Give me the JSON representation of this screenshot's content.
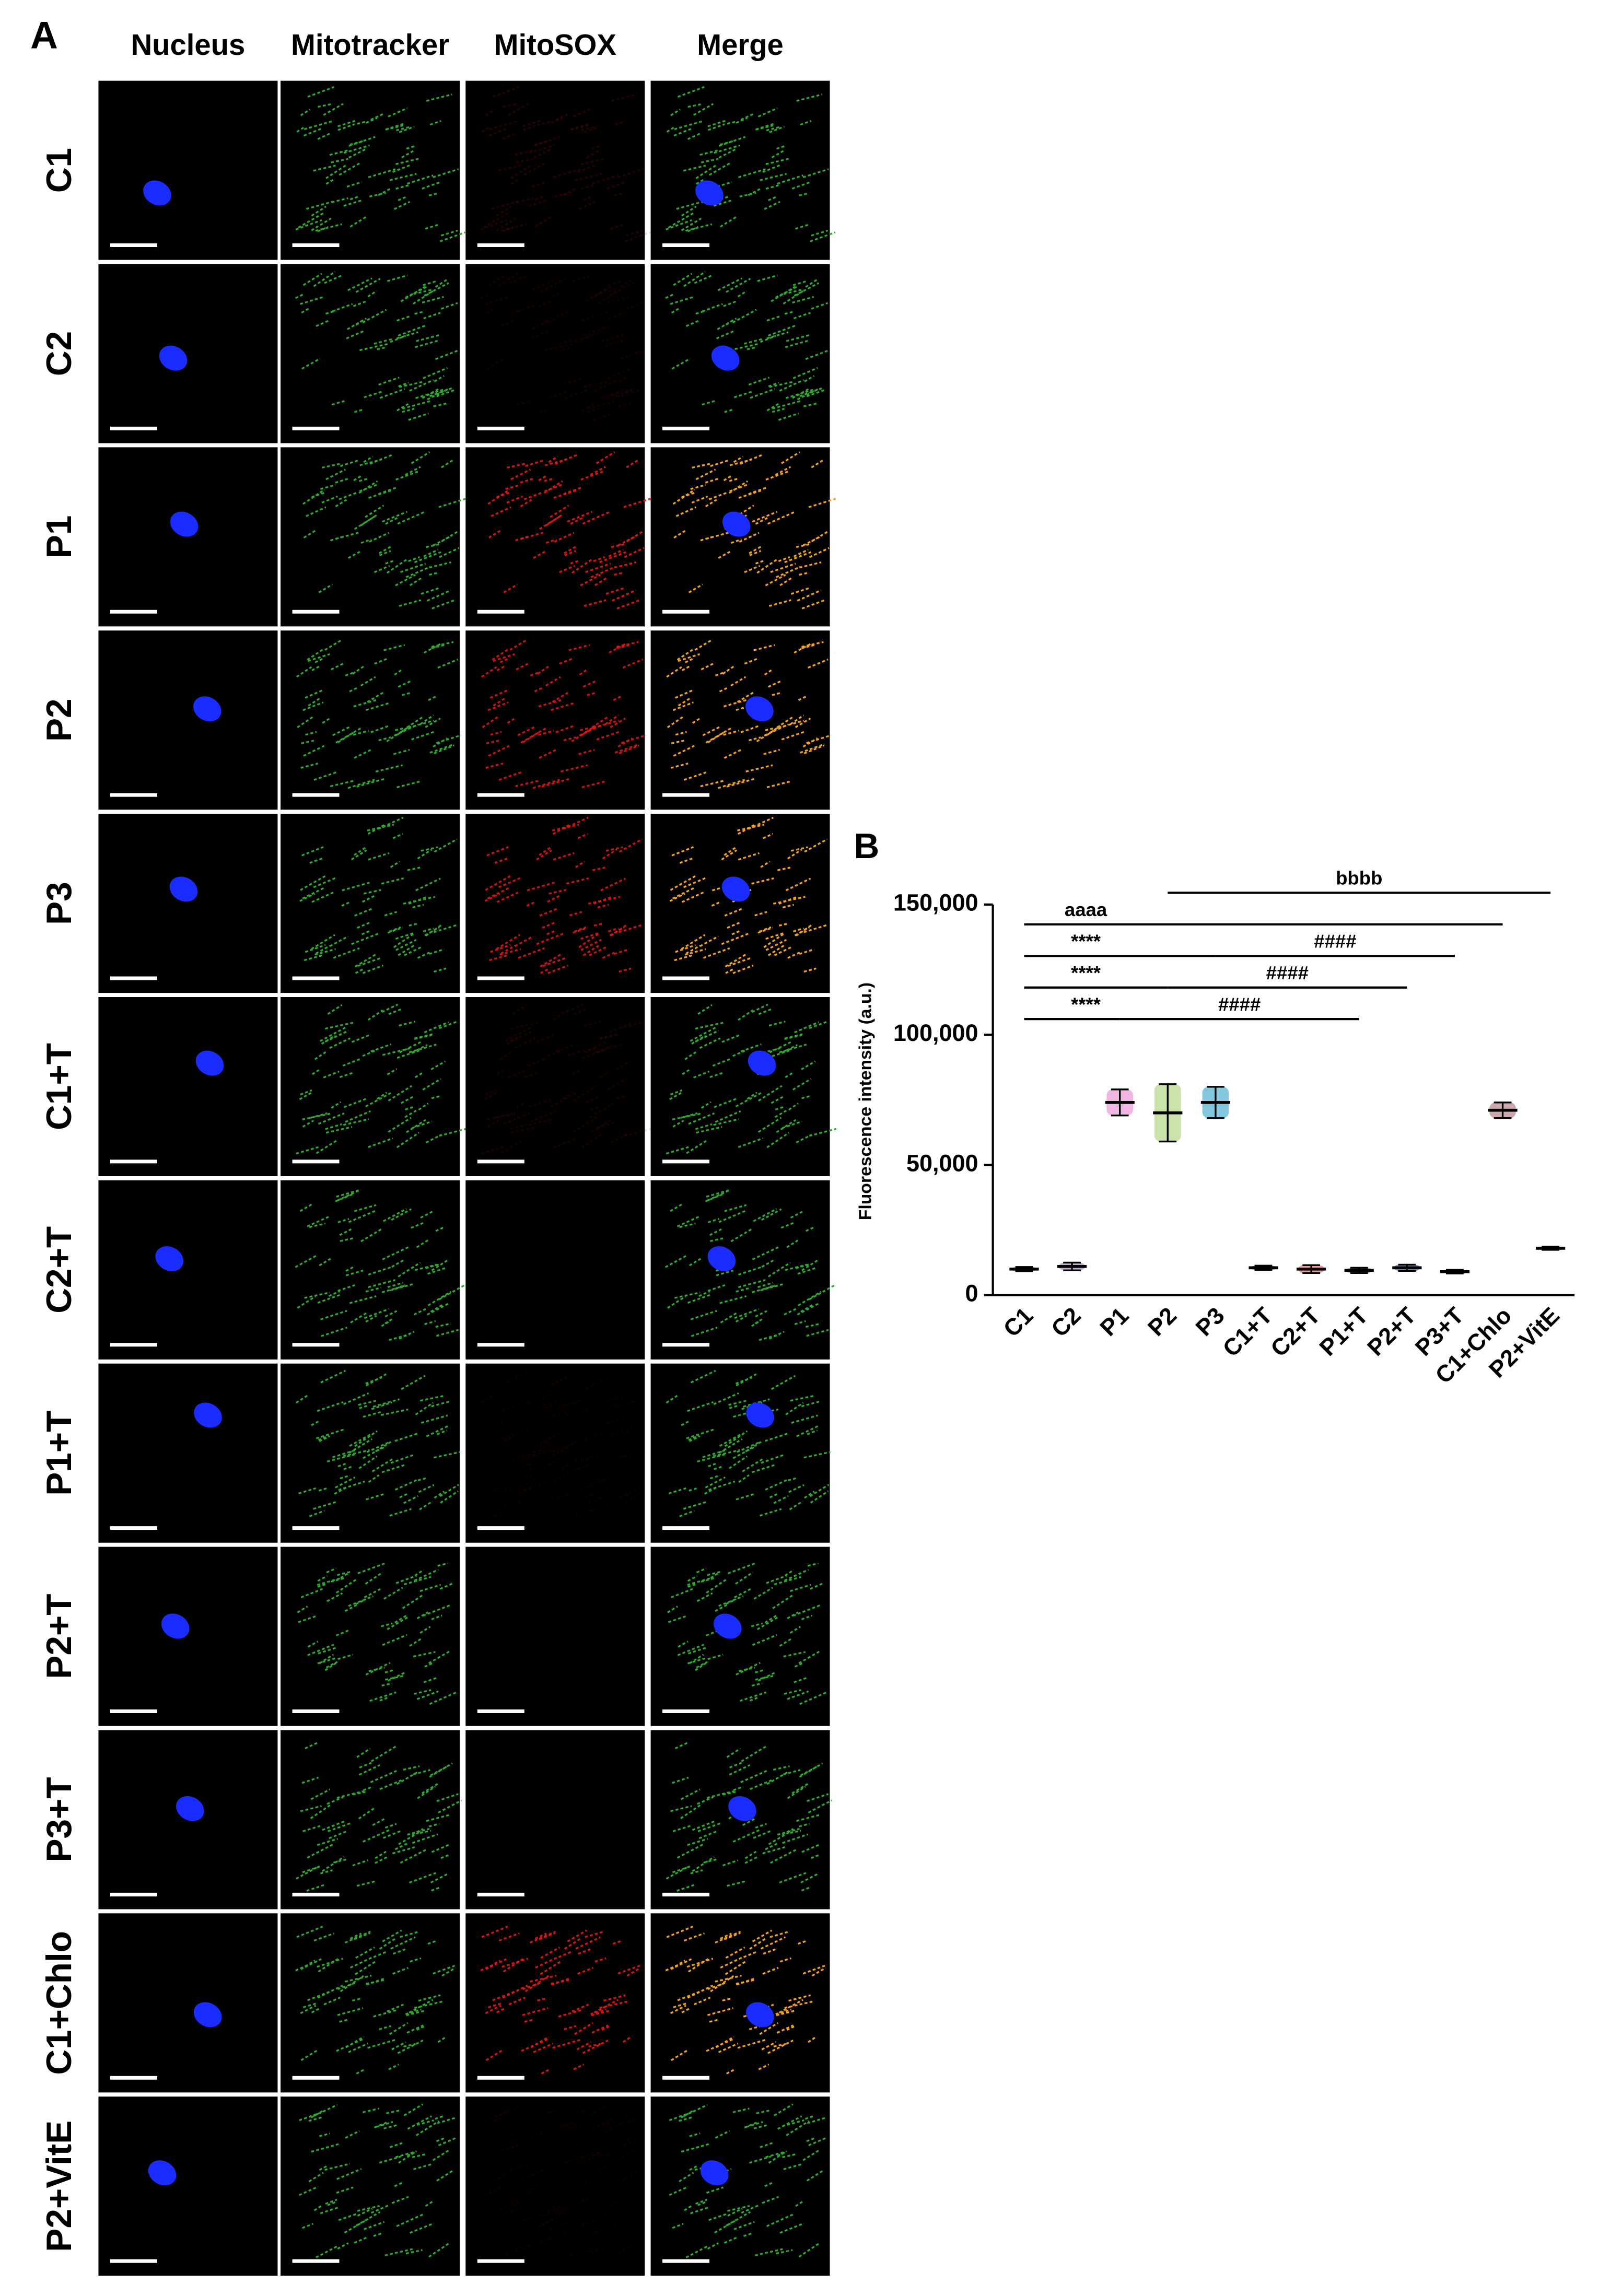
{
  "panel_a": {
    "label": "A",
    "columns": [
      "Nucleus",
      "Mitotracker",
      "MitoSOX",
      "Merge"
    ],
    "rows": [
      "C1",
      "C2",
      "P1",
      "P2",
      "P3",
      "C1+T",
      "C2+T",
      "P1+T",
      "P2+T",
      "P3+T",
      "C1+Chlo",
      "P2+VitE"
    ]
  },
  "chart_data": {
    "type": "dot",
    "panel_label": "B",
    "ylabel": "Fluorescence intensity (a.u.)",
    "categories": [
      "C1",
      "C2",
      "P1",
      "P2",
      "P3",
      "C1+T",
      "C2+T",
      "P1+T",
      "P2+T",
      "P3+T",
      "C1+Chlo",
      "P2+VitE"
    ],
    "values": [
      10000,
      11000,
      74000,
      70000,
      74000,
      10500,
      10000,
      9500,
      10500,
      9000,
      71000,
      18000
    ],
    "errors": [
      800,
      1500,
      5000,
      11000,
      6000,
      800,
      1500,
      1000,
      1200,
      700,
      3000,
      600
    ],
    "colors": [
      "#6a8caf",
      "#9b6fb5",
      "#e27ac8",
      "#9ccc65",
      "#1e9bc4",
      "#5c3c8c",
      "#e0505a",
      "#4e8a3a",
      "#1f4e8c",
      "#5a2a7a",
      "#a0606a",
      "#1f6a4a"
    ],
    "ylim": [
      0,
      150000
    ],
    "yticks": [
      0,
      {
        "value": 50000,
        "label": "50,000"
      },
      {
        "value": 100000,
        "label": "100,000"
      },
      {
        "value": 150000,
        "label": "150,000"
      }
    ],
    "brackets": [
      {
        "label": "****",
        "from": "C1",
        "to": "P1"
      },
      {
        "label": "####",
        "from": "P1",
        "to": "P1+T"
      },
      {
        "label": "****",
        "from": "C1",
        "to": "P2"
      },
      {
        "label": "####",
        "from": "P2",
        "to": "P2+T"
      },
      {
        "label": "****",
        "from": "C1",
        "to": "P3"
      },
      {
        "label": "####",
        "from": "P3",
        "to": "P3+T"
      },
      {
        "label": "aaaa",
        "from": "C1",
        "to": "C1+Chlo"
      },
      {
        "label": "bbbb",
        "from": "P2",
        "to": "P2+VitE"
      }
    ]
  }
}
